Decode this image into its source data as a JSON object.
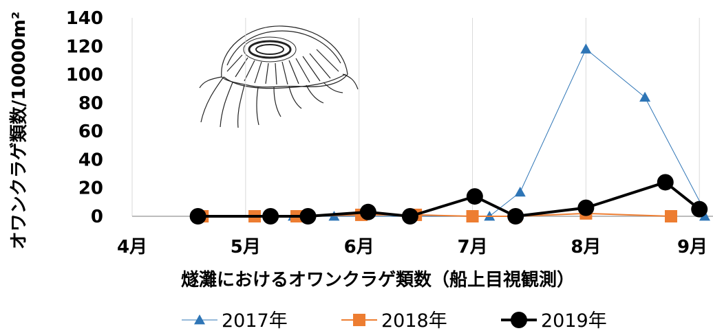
{
  "chart_data": {
    "type": "line",
    "title": "",
    "xlabel": "燧灘におけるオワンクラゲ類数（船上目視観測）",
    "ylabel": "オワンクラゲ類数/10000m²",
    "ylim": [
      0,
      140
    ],
    "yticks": [
      "0",
      "20",
      "40",
      "60",
      "80",
      "100",
      "120",
      "140"
    ],
    "xlim": [
      4,
      9.12
    ],
    "xticks": [
      {
        "value": 4,
        "label": "4月"
      },
      {
        "value": 5,
        "label": "5月"
      },
      {
        "value": 6,
        "label": "6月"
      },
      {
        "value": 7,
        "label": "7月"
      },
      {
        "value": 8,
        "label": "8月"
      },
      {
        "value": 9,
        "label": "9月"
      }
    ],
    "grid": "vertical",
    "legend_position": "bottom",
    "series": [
      {
        "name": "2017年",
        "color": "#2e75b6",
        "marker": "triangle",
        "line_width": 1,
        "points": [
          [
            4.58,
            0
          ],
          [
            5.42,
            0
          ],
          [
            5.78,
            0
          ],
          [
            6.45,
            0
          ],
          [
            7.15,
            0
          ],
          [
            7.42,
            17
          ],
          [
            8.0,
            118
          ],
          [
            8.52,
            84
          ],
          [
            9.1,
            0
          ]
        ]
      },
      {
        "name": "2018年",
        "color": "#ed7d31",
        "marker": "square",
        "line_width": 2,
        "points": [
          [
            4.62,
            0
          ],
          [
            5.08,
            0
          ],
          [
            5.45,
            0
          ],
          [
            6.02,
            1
          ],
          [
            6.5,
            1
          ],
          [
            7.0,
            0
          ],
          [
            7.38,
            0
          ],
          [
            8.0,
            2
          ],
          [
            8.75,
            0
          ]
        ]
      },
      {
        "name": "2019年",
        "color": "#000000",
        "marker": "circle",
        "line_width": 4,
        "points": [
          [
            4.58,
            0
          ],
          [
            5.22,
            0
          ],
          [
            5.55,
            0
          ],
          [
            6.08,
            3
          ],
          [
            6.45,
            0
          ],
          [
            7.02,
            14
          ],
          [
            7.38,
            0
          ],
          [
            8.0,
            6
          ],
          [
            8.7,
            24
          ],
          [
            9.0,
            5
          ]
        ]
      }
    ]
  },
  "illustration": {
    "icon": "jellyfish-sketch-icon"
  }
}
